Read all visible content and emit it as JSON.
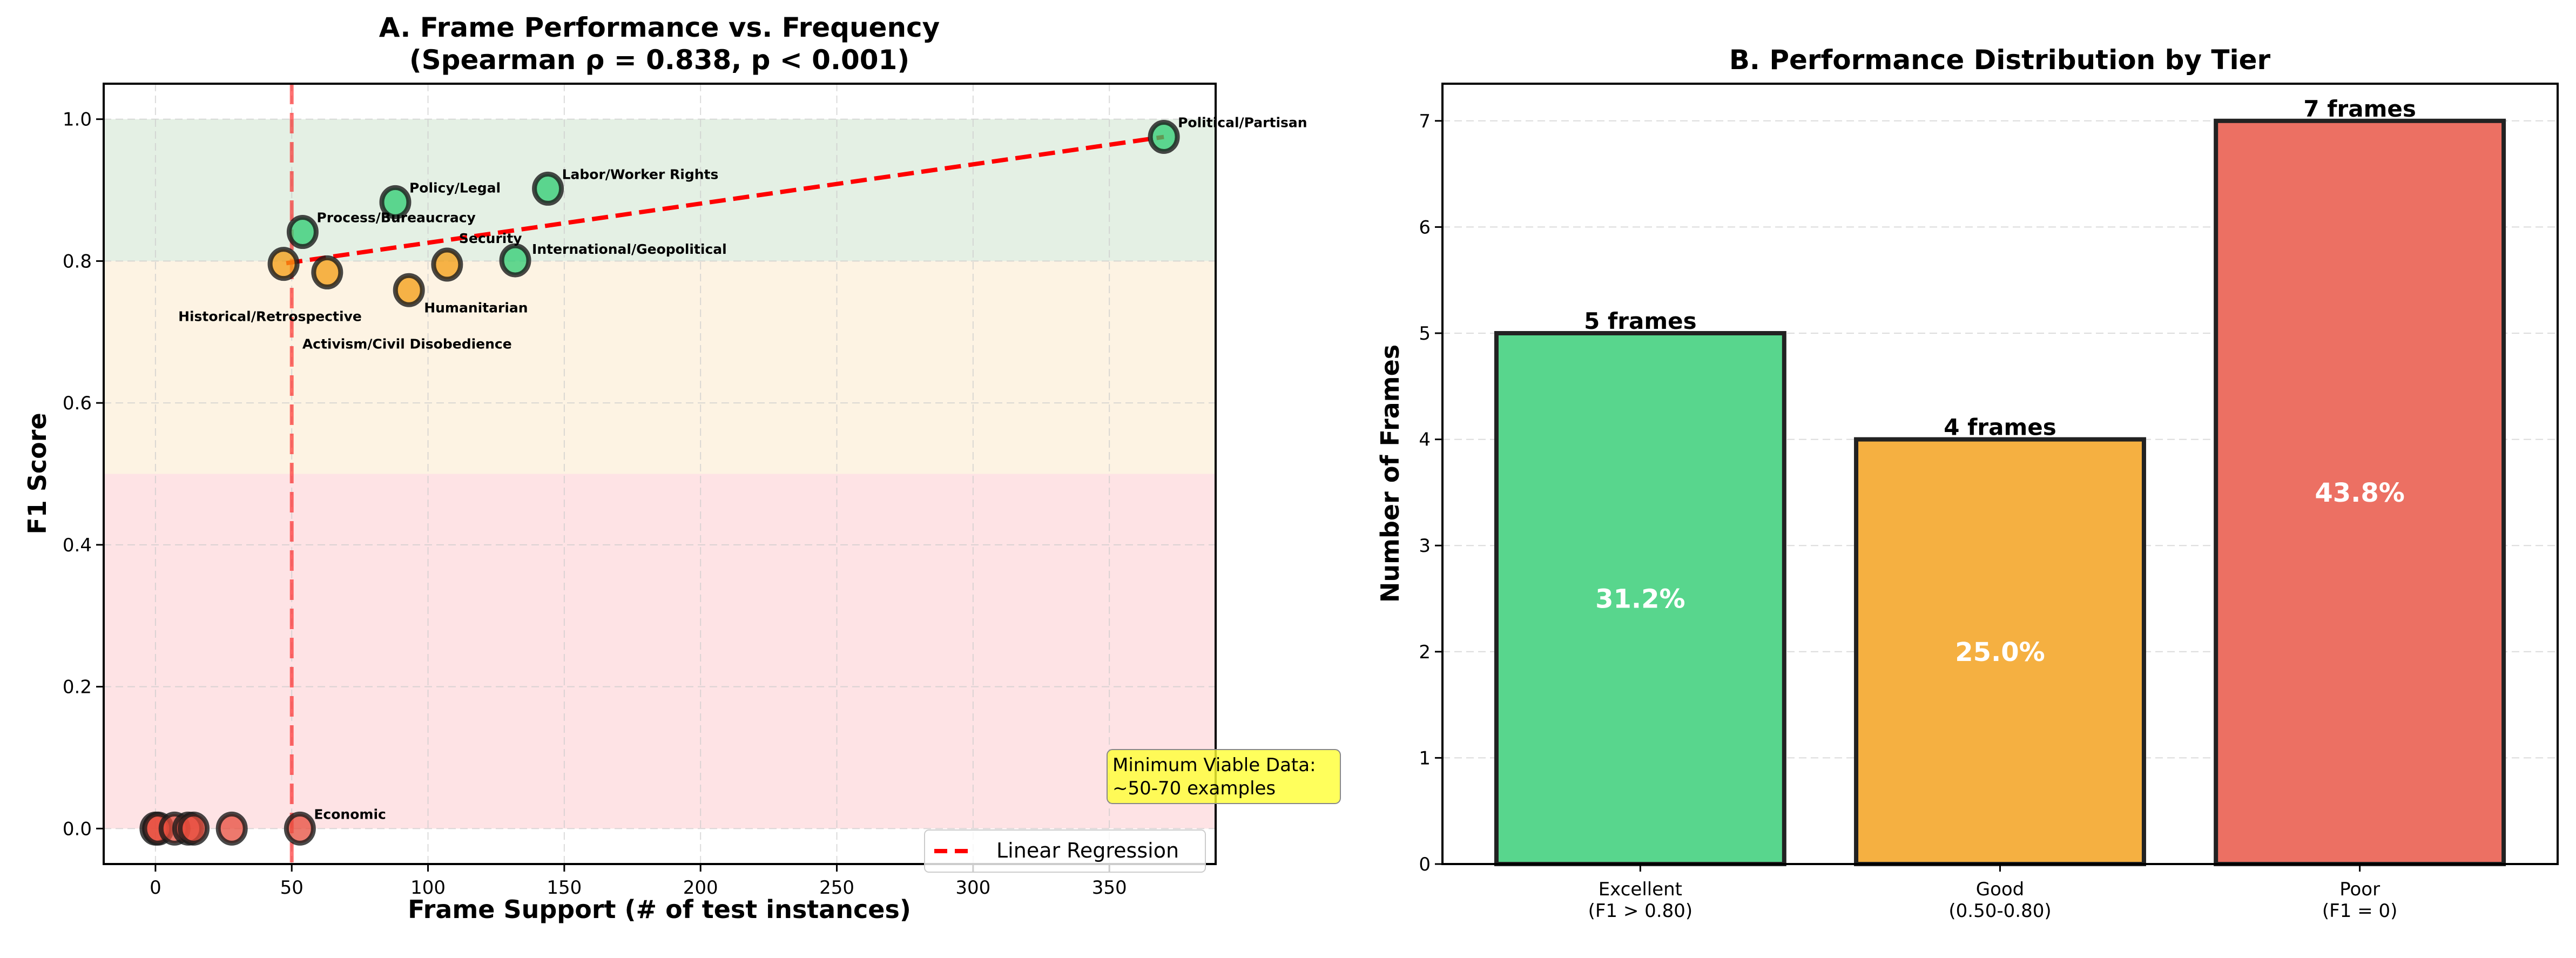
{
  "chart_data": [
    {
      "type": "scatter",
      "title_line1": "A. Frame Performance vs. Frequency",
      "title_line2": "(Spearman ρ = 0.838, p < 0.001)",
      "xlabel": "Frame Support (# of test instances)",
      "ylabel": "F1 Score",
      "xlim": [
        -19,
        389
      ],
      "ylim": [
        -0.05,
        1.05
      ],
      "xticks": [
        0,
        50,
        100,
        150,
        200,
        250,
        300,
        350
      ],
      "yticks": [
        "0.0",
        "0.2",
        "0.4",
        "0.6",
        "0.8",
        "1.0"
      ],
      "grid": true,
      "bands": [
        {
          "from": 0.8,
          "to": 1.0,
          "color": "#e4f0e4"
        },
        {
          "from": 0.5,
          "to": 0.8,
          "color": "#fdf3e3"
        },
        {
          "from": 0.0,
          "to": 0.5,
          "color": "#fee3e5"
        }
      ],
      "tier_colors": {
        "excellent": "#2ecc71",
        "good": "#f39c12",
        "poor": "#e74c3c"
      },
      "points": [
        {
          "label": "Political/Partisan",
          "x": 370,
          "y": 0.975,
          "tier": "excellent"
        },
        {
          "label": "Labor/Worker Rights",
          "x": 144,
          "y": 0.902,
          "tier": "excellent"
        },
        {
          "label": "Policy/Legal",
          "x": 88,
          "y": 0.883,
          "tier": "excellent"
        },
        {
          "label": "Process/Bureaucracy",
          "x": 54,
          "y": 0.841,
          "tier": "excellent"
        },
        {
          "label": "International/Geopolitical",
          "x": 132,
          "y": 0.801,
          "tier": "excellent"
        },
        {
          "label": "Historical/Retrospective",
          "x": 47,
          "y": 0.796,
          "tier": "good"
        },
        {
          "label": "Activism/Civil Disobedience",
          "x": 63,
          "y": 0.784,
          "tier": "good"
        },
        {
          "label": "Humanitarian",
          "x": 93,
          "y": 0.759,
          "tier": "good"
        },
        {
          "label": "Security",
          "x": 107,
          "y": 0.795,
          "tier": "good"
        },
        {
          "label": "Economic",
          "x": 53,
          "y": 0.0,
          "tier": "poor"
        },
        {
          "label": "",
          "x": 0,
          "y": 0.0,
          "tier": "poor"
        },
        {
          "label": "",
          "x": 1,
          "y": 0.0,
          "tier": "poor"
        },
        {
          "label": "",
          "x": 7,
          "y": 0.0,
          "tier": "poor"
        },
        {
          "label": "",
          "x": 12,
          "y": 0.0,
          "tier": "poor"
        },
        {
          "label": "",
          "x": 14,
          "y": 0.0,
          "tier": "poor"
        },
        {
          "label": "",
          "x": 28,
          "y": 0.0,
          "tier": "poor"
        }
      ],
      "regression": {
        "name": "Linear Regression",
        "x": [
          48,
          370
        ],
        "y": [
          0.797,
          0.975
        ],
        "color": "#ff0000"
      },
      "threshold_line": {
        "x": 50,
        "color": "#ff0000"
      },
      "annotation": {
        "line1": "Minimum Viable Data:",
        "line2": "~50-70 examples",
        "x": 352,
        "y": 0.065
      },
      "legend_placement": "lower-right"
    },
    {
      "type": "bar",
      "title": "B. Performance Distribution by Tier",
      "ylabel": "Number of Frames",
      "xlabel": "",
      "ylim": [
        0,
        7.35
      ],
      "yticks": [
        0,
        1,
        2,
        3,
        4,
        5,
        6,
        7
      ],
      "grid": true,
      "categories": [
        {
          "line1": "Excellent",
          "line2": "(F1 > 0.80)"
        },
        {
          "line1": "Good",
          "line2": "(0.50-0.80)"
        },
        {
          "line1": "Poor",
          "line2": "(F1 = 0)"
        }
      ],
      "values": [
        5,
        4,
        7
      ],
      "value_labels": [
        "5 frames",
        "4 frames",
        "7 frames"
      ],
      "percent_labels": [
        "31.2%",
        "25.0%",
        "43.8%"
      ],
      "colors": [
        "#58d68d",
        "#f5b041",
        "#ec7063"
      ]
    }
  ]
}
